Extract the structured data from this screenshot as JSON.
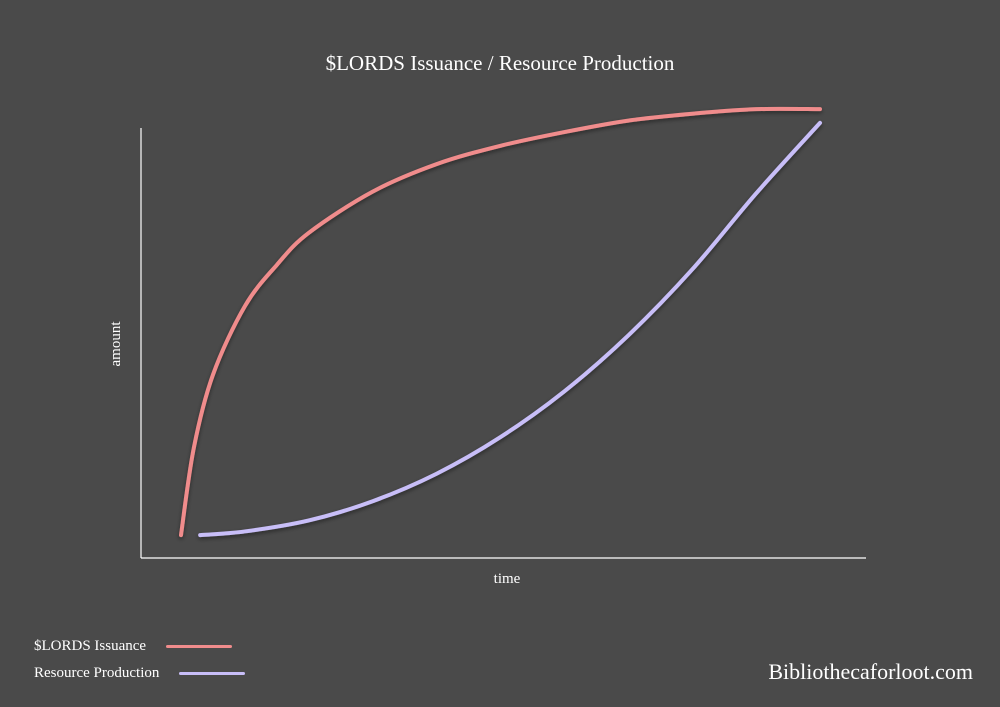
{
  "chart_data": {
    "type": "line",
    "title": "$LORDS Issuance / Resource Production",
    "xlabel": "time",
    "ylabel": "amount",
    "xlim": [
      0,
      100
    ],
    "ylim": [
      0,
      100
    ],
    "grid": false,
    "axis_ticks": false,
    "legend_position": "bottom-left",
    "series": [
      {
        "name": "$LORDS Issuance",
        "color": "#f08c8c",
        "x": [
          0,
          2,
          5,
          10,
          15,
          20,
          30,
          40,
          50,
          60,
          70,
          80,
          90,
          100
        ],
        "y": [
          5,
          24,
          40,
          55,
          64,
          71,
          80,
          86,
          90,
          93,
          95.5,
          97,
          98,
          98
        ]
      },
      {
        "name": "Resource Production",
        "color": "#c8bef8",
        "x": [
          3,
          10,
          20,
          30,
          40,
          50,
          60,
          70,
          80,
          90,
          100
        ],
        "y": [
          5,
          5.8,
          8.2,
          12.4,
          18.4,
          26.4,
          36.4,
          48.6,
          63,
          79.6,
          95
        ]
      }
    ]
  },
  "watermark": "Bibliothecaforloot.com"
}
